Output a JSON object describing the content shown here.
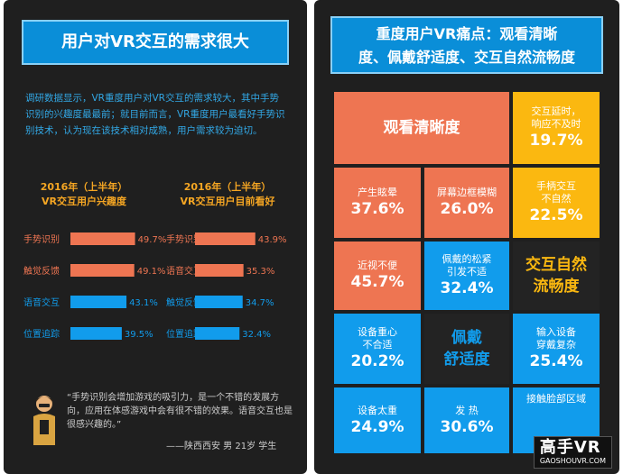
{
  "left": {
    "banner": "用户对VR交互的需求很大",
    "intro": "调研数据显示，VR重度用户对VR交互的需求较大，其中手势识别的兴趣度最最前；就目前而言，VR重度用户最看好手势识别技术，认为现在该技术相对成熟，用户需求较为迫切。",
    "quote": "“手势识别会增加游戏的吸引力，是一个不错的发展方向，应用在体感游戏中会有很不错的效果。语音交互也是很感兴趣的。”",
    "quote_author": "——陕西西安  男   21岁  学生"
  },
  "chart_data": [
    {
      "type": "bar",
      "orientation": "horizontal",
      "title": "2016年（上半年）\nVR交互用户兴趣度",
      "title_line1": "2016年（上半年）",
      "title_line2": "VR交互用户兴趣度",
      "categories": [
        "手势识别",
        "触觉反馈",
        "语音交互",
        "位置追踪"
      ],
      "values": [
        49.7,
        49.1,
        43.1,
        39.5
      ],
      "value_labels": [
        "49.7%",
        "49.1%",
        "43.1%",
        "39.5%"
      ],
      "colors": [
        "#ee7552",
        "#ee7552",
        "#119cec",
        "#119cec"
      ]
    },
    {
      "type": "bar",
      "orientation": "horizontal",
      "title": "2016年（上半年）\nVR交互用户目前看好",
      "title_line1": "2016年（上半年）",
      "title_line2": "VR交互用户目前看好",
      "categories": [
        "手势识别",
        "语音交互",
        "触觉反馈",
        "位置追踪"
      ],
      "values": [
        43.9,
        35.3,
        34.7,
        32.4
      ],
      "value_labels": [
        "43.9%",
        "35.3%",
        "34.7%",
        "32.4%"
      ],
      "colors": [
        "#ee7552",
        "#ee7552",
        "#119cec",
        "#119cec"
      ]
    }
  ],
  "right": {
    "banner_line1": "重度用户VR痛点：观看清晰",
    "banner_line2": "度、佩戴舒适度、交互自然流畅度",
    "cells": {
      "clarity": "观看清晰度",
      "latency_label": "交互延时，\n响应不及时",
      "latency_value": "19.7%",
      "dizzy_label": "产生眩晕",
      "dizzy_value": "37.6%",
      "blur_label": "屏幕边框模糊",
      "blur_value": "26.0%",
      "gesture_label": "手柄交互\n不自然",
      "gesture_value": "22.5%",
      "myopia_label": "近视不便",
      "myopia_value": "45.7%",
      "strap_label": "佩戴的松紧\n引发不适",
      "strap_value": "32.4%",
      "natural": "交互自然\n流畅度",
      "gravity_label": "设备重心\n不合适",
      "gravity_value": "20.2%",
      "comfort": "佩戴\n舒适度",
      "input_label": "输入设备\n穿戴复杂",
      "input_value": "25.4%",
      "heavy_label": "设备太重",
      "heavy_value": "24.9%",
      "heat_label": "发  热",
      "heat_value": "30.6%",
      "contact_label": "接触脸部区域"
    },
    "watermark_main": "高手VR",
    "watermark_sub": "GAOSHOUVR.COM"
  },
  "colors": {
    "orange": "#ee7552",
    "blue": "#119cec",
    "yellow": "#fbb810",
    "dark": "#1f1f1f"
  }
}
